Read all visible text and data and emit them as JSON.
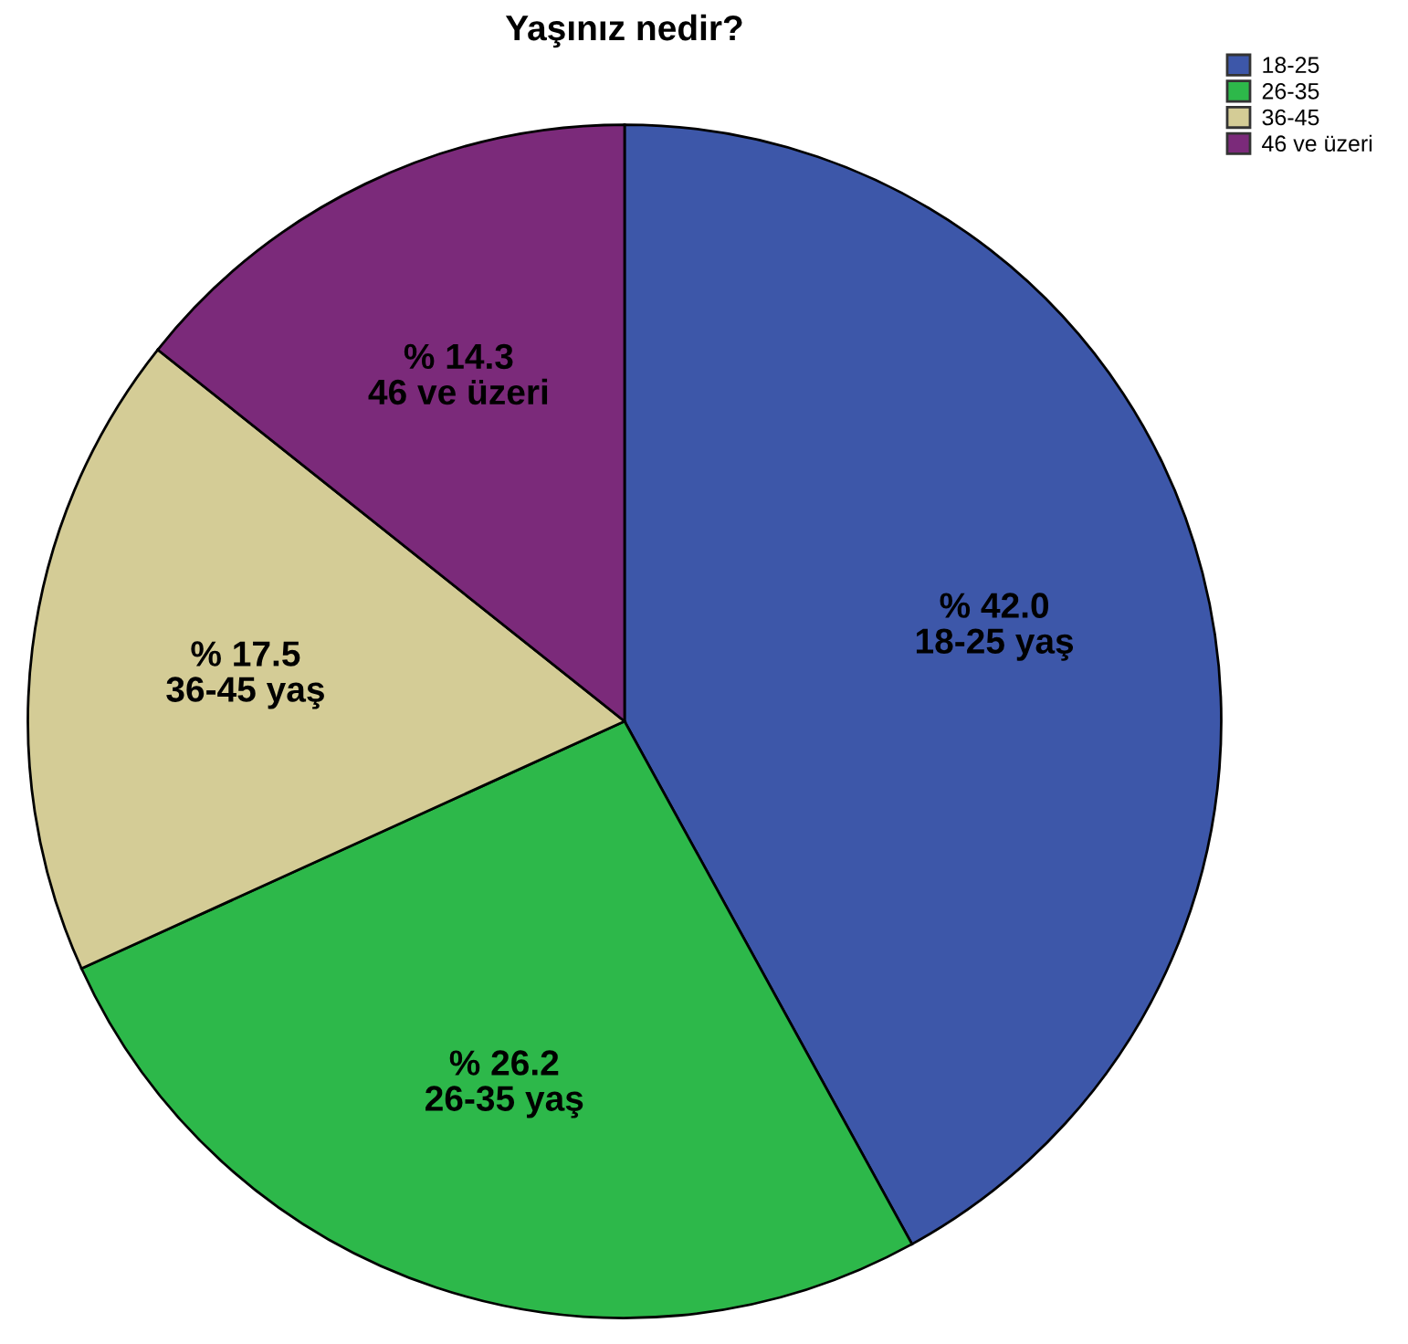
{
  "chart_data": {
    "type": "pie",
    "title": "Yaşınız nedir?",
    "categories": [
      "18-25",
      "26-35",
      "36-45",
      "46 ve üzeri"
    ],
    "values": [
      42.0,
      26.2,
      17.5,
      14.3
    ],
    "colors": [
      "#3d57a9",
      "#2db84a",
      "#d4cc96",
      "#7b2a7a"
    ],
    "value_labels": [
      "% 42.0\n18-25 yaş",
      "% 26.2\n26-35 yaş",
      "% 17.5\n36-45 yaş",
      "% 14.3\n46 ve üzeri"
    ],
    "legend": "top right"
  }
}
